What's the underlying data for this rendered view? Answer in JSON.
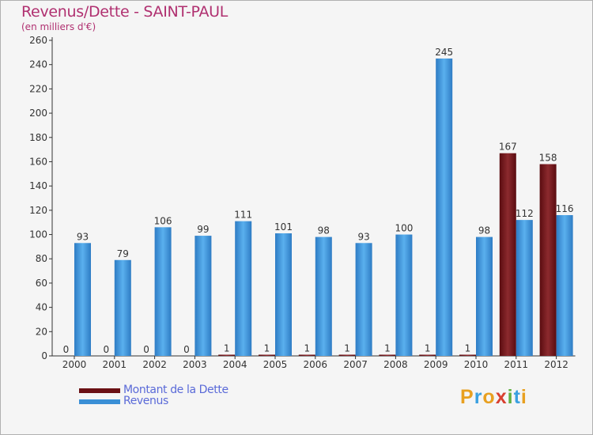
{
  "colors": {
    "dette": "#7a1418",
    "revenus": "#3a8fd6",
    "title": "#b03070",
    "legend_text": "#5a6ad8"
  },
  "chart_data": {
    "type": "bar",
    "title": "Revenus/Dette - SAINT-PAUL",
    "subtitle": "(en milliers d'€)",
    "categories": [
      "2000",
      "2001",
      "2002",
      "2003",
      "2004",
      "2005",
      "2006",
      "2007",
      "2008",
      "2009",
      "2010",
      "2011",
      "2012"
    ],
    "series": [
      {
        "name": "Montant de la Dette",
        "values": [
          0,
          0,
          0,
          0,
          1,
          1,
          1,
          1,
          1,
          1,
          1,
          167,
          158
        ]
      },
      {
        "name": "Revenus",
        "values": [
          93,
          79,
          106,
          99,
          111,
          101,
          98,
          93,
          100,
          245,
          98,
          112,
          116
        ]
      }
    ],
    "ylim": [
      0,
      260
    ],
    "yticks": [
      0,
      20,
      40,
      60,
      80,
      100,
      120,
      140,
      160,
      180,
      200,
      220,
      240,
      260
    ],
    "grid": false,
    "legend": "bottom-left"
  },
  "logo": {
    "letters": [
      "P",
      "r",
      "o",
      "x",
      "i",
      "t",
      "i"
    ],
    "colors": [
      "#e8a020",
      "#3aa0e0",
      "#e8a020",
      "#d84030",
      "#60b040",
      "#3aa0e0",
      "#e8a020"
    ]
  }
}
